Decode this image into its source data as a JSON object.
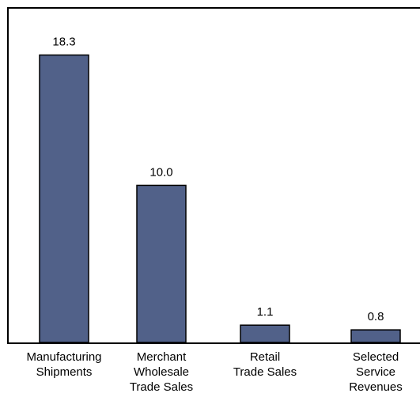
{
  "chart_data": {
    "type": "bar",
    "categories": [
      [
        "Manufacturing",
        "Shipments"
      ],
      [
        "Merchant",
        "Wholesale",
        "Trade Sales"
      ],
      [
        "Retail",
        "Trade Sales"
      ],
      [
        "Selected",
        "Service",
        "Revenues"
      ]
    ],
    "values": [
      18.3,
      10.0,
      1.1,
      0.8
    ],
    "value_labels": [
      "18.3",
      "10.0",
      "1.1",
      "0.8"
    ],
    "ylim": [
      0,
      21.3
    ],
    "grid": false,
    "legend": "none",
    "colors": {
      "bar_fill": "#516189",
      "bar_stroke": "#000000",
      "axis": "#000000"
    }
  }
}
